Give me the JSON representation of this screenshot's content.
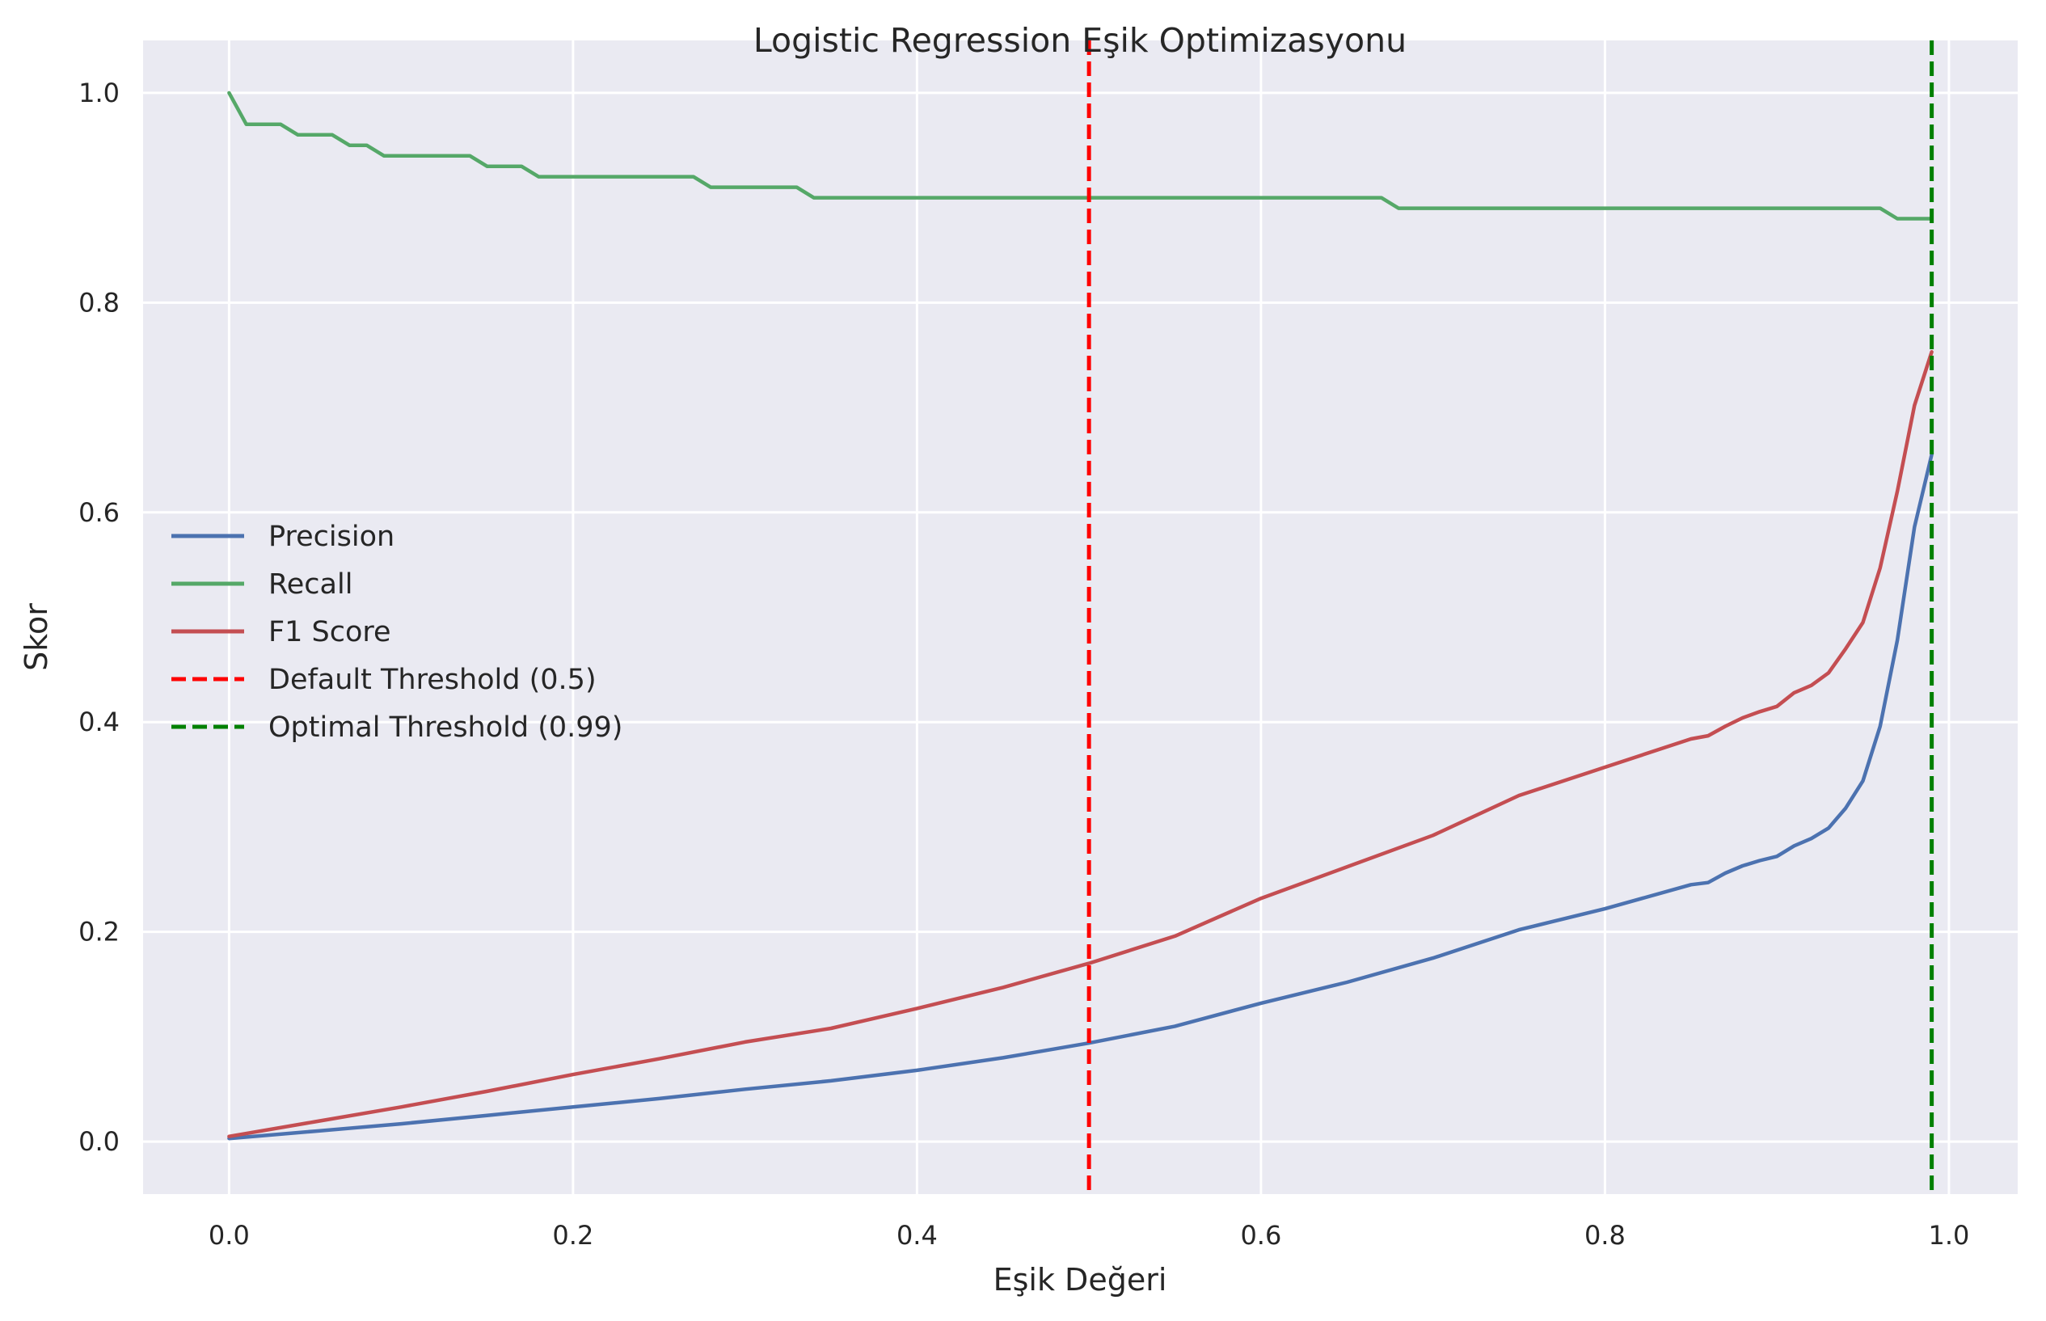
{
  "chart_data": {
    "type": "line",
    "title": "Logistic Regression Eşik Optimizasyonu",
    "xlabel": "Eşik Değeri",
    "ylabel": "Skor",
    "xlim": [
      -0.05,
      1.04
    ],
    "ylim": [
      -0.05,
      1.05
    ],
    "xticks": [
      0.0,
      0.2,
      0.4,
      0.6,
      0.8,
      1.0
    ],
    "xtick_labels": [
      "0.0",
      "0.2",
      "0.4",
      "0.6",
      "0.8",
      "1.0"
    ],
    "yticks": [
      0.0,
      0.2,
      0.4,
      0.6,
      0.8,
      1.0
    ],
    "ytick_labels": [
      "0.0",
      "0.2",
      "0.4",
      "0.6",
      "0.8",
      "1.0"
    ],
    "grid": true,
    "legend_position": "center-left",
    "background": "#eaeaf2",
    "series": [
      {
        "name": "Precision",
        "color": "#4c72b0",
        "style": "solid",
        "points": [
          [
            0.0,
            0.003
          ],
          [
            0.05,
            0.01
          ],
          [
            0.1,
            0.017
          ],
          [
            0.15,
            0.025
          ],
          [
            0.2,
            0.033
          ],
          [
            0.25,
            0.041
          ],
          [
            0.3,
            0.05
          ],
          [
            0.35,
            0.058
          ],
          [
            0.4,
            0.068
          ],
          [
            0.45,
            0.08
          ],
          [
            0.5,
            0.094
          ],
          [
            0.55,
            0.11
          ],
          [
            0.6,
            0.132
          ],
          [
            0.65,
            0.152
          ],
          [
            0.7,
            0.175
          ],
          [
            0.75,
            0.202
          ],
          [
            0.8,
            0.222
          ],
          [
            0.85,
            0.245
          ],
          [
            0.86,
            0.247
          ],
          [
            0.87,
            0.256
          ],
          [
            0.88,
            0.263
          ],
          [
            0.89,
            0.268
          ],
          [
            0.9,
            0.272
          ],
          [
            0.91,
            0.282
          ],
          [
            0.92,
            0.289
          ],
          [
            0.93,
            0.299
          ],
          [
            0.94,
            0.318
          ],
          [
            0.95,
            0.344
          ],
          [
            0.96,
            0.396
          ],
          [
            0.97,
            0.478
          ],
          [
            0.98,
            0.586
          ],
          [
            0.99,
            0.655
          ]
        ]
      },
      {
        "name": "Recall",
        "color": "#55a868",
        "style": "solid",
        "points": [
          [
            0.0,
            1.0
          ],
          [
            0.01,
            0.97
          ],
          [
            0.03,
            0.97
          ],
          [
            0.04,
            0.96
          ],
          [
            0.06,
            0.96
          ],
          [
            0.07,
            0.95
          ],
          [
            0.08,
            0.95
          ],
          [
            0.09,
            0.94
          ],
          [
            0.14,
            0.94
          ],
          [
            0.15,
            0.93
          ],
          [
            0.17,
            0.93
          ],
          [
            0.18,
            0.92
          ],
          [
            0.27,
            0.92
          ],
          [
            0.28,
            0.91
          ],
          [
            0.33,
            0.91
          ],
          [
            0.34,
            0.9
          ],
          [
            0.67,
            0.9
          ],
          [
            0.68,
            0.89
          ],
          [
            0.96,
            0.89
          ],
          [
            0.97,
            0.88
          ],
          [
            0.99,
            0.88
          ]
        ]
      },
      {
        "name": "F1 Score",
        "color": "#c44e52",
        "style": "solid",
        "points": [
          [
            0.0,
            0.005
          ],
          [
            0.05,
            0.019
          ],
          [
            0.1,
            0.033
          ],
          [
            0.15,
            0.048
          ],
          [
            0.2,
            0.064
          ],
          [
            0.25,
            0.079
          ],
          [
            0.3,
            0.095
          ],
          [
            0.35,
            0.108
          ],
          [
            0.4,
            0.127
          ],
          [
            0.45,
            0.147
          ],
          [
            0.5,
            0.17
          ],
          [
            0.55,
            0.196
          ],
          [
            0.6,
            0.232
          ],
          [
            0.65,
            0.262
          ],
          [
            0.7,
            0.292
          ],
          [
            0.75,
            0.33
          ],
          [
            0.8,
            0.357
          ],
          [
            0.85,
            0.384
          ],
          [
            0.86,
            0.387
          ],
          [
            0.87,
            0.396
          ],
          [
            0.88,
            0.404
          ],
          [
            0.89,
            0.41
          ],
          [
            0.9,
            0.415
          ],
          [
            0.91,
            0.428
          ],
          [
            0.92,
            0.435
          ],
          [
            0.93,
            0.447
          ],
          [
            0.94,
            0.47
          ],
          [
            0.95,
            0.495
          ],
          [
            0.96,
            0.547
          ],
          [
            0.97,
            0.62
          ],
          [
            0.98,
            0.702
          ],
          [
            0.99,
            0.753
          ]
        ]
      }
    ],
    "vlines": [
      {
        "name": "Default Threshold (0.5)",
        "x": 0.5,
        "color": "#ff0000",
        "style": "dashed"
      },
      {
        "name": "Optimal Threshold (0.99)",
        "x": 0.99,
        "color": "#008000",
        "style": "dashed"
      }
    ]
  }
}
